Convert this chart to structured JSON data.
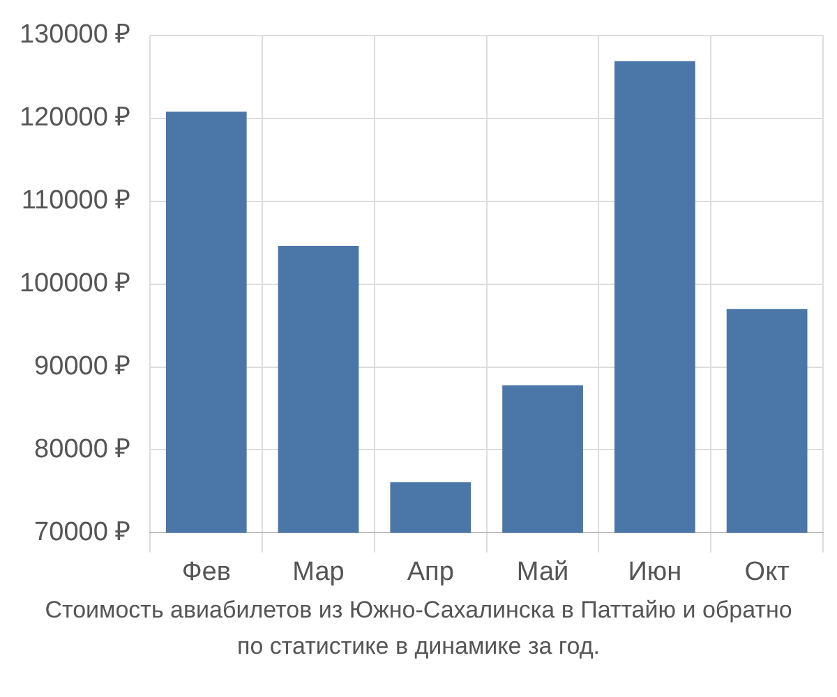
{
  "chart_data": {
    "type": "bar",
    "categories": [
      "Фев",
      "Мар",
      "Апр",
      "Май",
      "Июн",
      "Окт"
    ],
    "values": [
      120800,
      104600,
      76100,
      87800,
      126900,
      97000
    ],
    "color": "#4a76a8",
    "ylim": [
      70000,
      130000
    ],
    "yticks": [
      {
        "value": 70000,
        "label": "70000 ₽"
      },
      {
        "value": 80000,
        "label": "80000 ₽"
      },
      {
        "value": 90000,
        "label": "90000 ₽"
      },
      {
        "value": 100000,
        "label": "100000 ₽"
      },
      {
        "value": 110000,
        "label": "110000 ₽"
      },
      {
        "value": 120000,
        "label": "120000 ₽"
      },
      {
        "value": 130000,
        "label": "130000 ₽"
      }
    ],
    "grid": true,
    "annotations": [
      "Стоимость авиабилетов из Южно-Сахалинска в Паттайю и обратно",
      "по статистике в динамике за год."
    ]
  }
}
